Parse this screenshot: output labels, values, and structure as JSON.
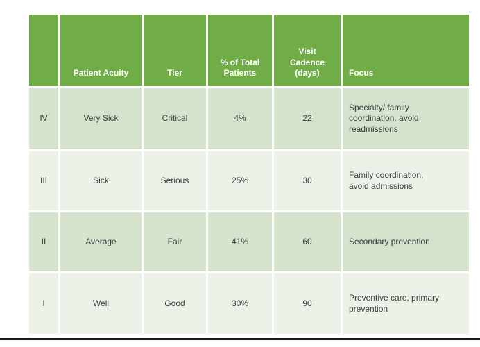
{
  "table": {
    "columns": [
      {
        "label": ""
      },
      {
        "label": "Patient Acuity"
      },
      {
        "label": "Tier"
      },
      {
        "label": "% of Total Patients"
      },
      {
        "label": "Visit Cadence (days)"
      },
      {
        "label": "Focus"
      }
    ],
    "rows": [
      {
        "cells": [
          "IV",
          "Very Sick",
          "Critical",
          "4%",
          "22",
          "Specialty/ family coordination, avoid readmissions"
        ]
      },
      {
        "cells": [
          "III",
          "Sick",
          "Serious",
          "25%",
          "30",
          "Family coordination, avoid admissions"
        ]
      },
      {
        "cells": [
          "II",
          "Average",
          "Fair",
          "41%",
          "60",
          "Secondary prevention"
        ]
      },
      {
        "cells": [
          "I",
          "Well",
          "Good",
          "30%",
          "90",
          "Preventive care, primary prevention"
        ]
      }
    ]
  },
  "colors": {
    "header_bg": "#70ad47",
    "header_text": "#ffffff",
    "row_band_dark": "#d6e3cd",
    "row_band_light": "#ecf2e8",
    "body_text": "#3a3a3a",
    "bottom_rule": "#161616",
    "page_bg": "#ffffff"
  }
}
